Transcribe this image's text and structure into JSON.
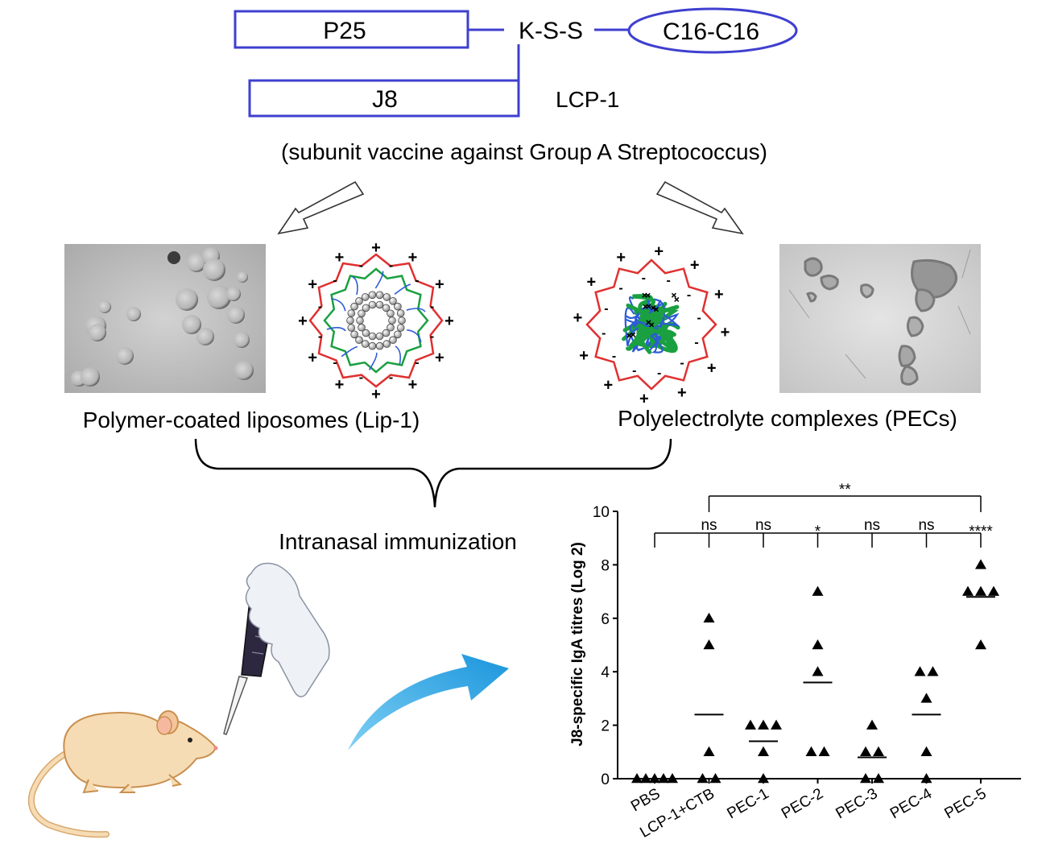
{
  "construct": {
    "p25": "P25",
    "kss": "K-S-S",
    "lipid": "C16-C16",
    "j8": "J8",
    "name": "LCP-1",
    "description": "(subunit vaccine against Group A Streptococcus)"
  },
  "formulations": {
    "left_caption": "Polymer-coated liposomes (Lip-1)",
    "right_caption": "Polyelectrolyte complexes (PECs)"
  },
  "route_label": "Intranasal immunization",
  "charge_symbols": {
    "plus": "+",
    "minus": "-"
  },
  "colors": {
    "box_outline": "#3f3fd0",
    "red_layer": "#e03030",
    "green_layer": "#1aa040",
    "blue_chains": "#2b5bd6",
    "arrow_blue": "#29a8e6",
    "mouse": "#f6dcb4",
    "glove": "#eef1f6"
  },
  "chart_data": {
    "type": "scatter",
    "ylabel": "J8-specific IgA titres (Log 2)",
    "xlabel": "",
    "ylim": [
      0,
      10
    ],
    "yticks": [
      0,
      2,
      4,
      6,
      8,
      10
    ],
    "categories": [
      "PBS",
      "LCP-1+CTB",
      "PEC-1",
      "PEC-2",
      "PEC-3",
      "PEC-4",
      "PEC-5"
    ],
    "points": [
      [
        0,
        0,
        0,
        0,
        0
      ],
      [
        0,
        0,
        1,
        5,
        6
      ],
      [
        0,
        1,
        2,
        2,
        2
      ],
      [
        1,
        1,
        4,
        5,
        7
      ],
      [
        0,
        0,
        1,
        1,
        2
      ],
      [
        0,
        1,
        3,
        4,
        4
      ],
      [
        5,
        7,
        7,
        7,
        8
      ]
    ],
    "means": [
      0,
      2.4,
      1.4,
      3.6,
      0.8,
      2.4,
      6.8
    ],
    "marker": "triangle",
    "significance_vs_pbs": [
      "",
      "ns",
      "ns",
      "*",
      "ns",
      "ns",
      "****"
    ],
    "top_comparison": {
      "from": "LCP-1+CTB",
      "to": "PEC-5",
      "label": "**"
    }
  }
}
